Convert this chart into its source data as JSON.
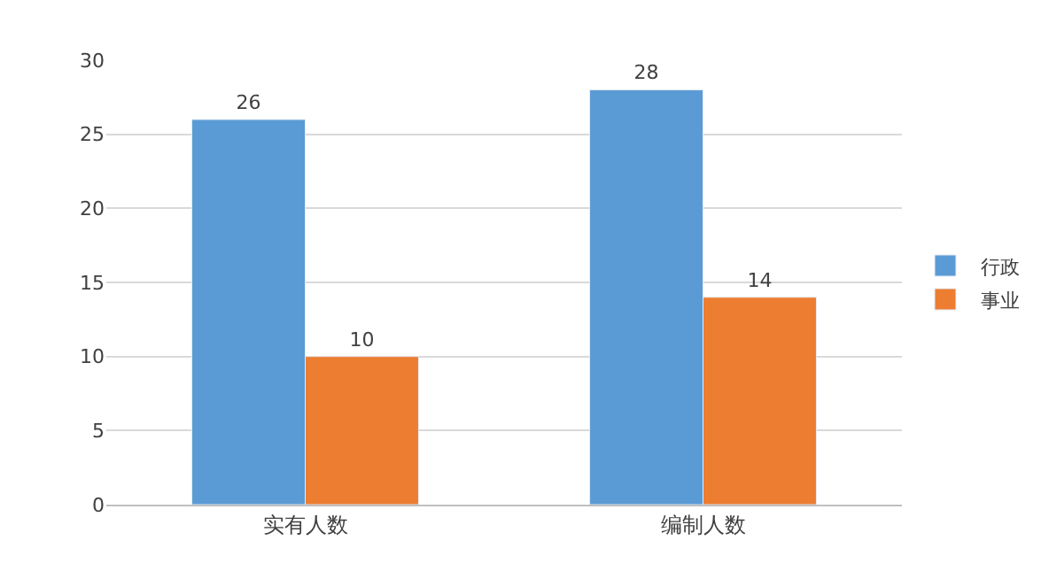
{
  "chart_data": {
    "type": "bar",
    "categories": [
      "实有人数",
      "编制人数"
    ],
    "series": [
      {
        "name": "行政",
        "color": "#5b9bd5",
        "values": [
          26,
          28
        ]
      },
      {
        "name": "事业",
        "color": "#ed7d31",
        "values": [
          10,
          14
        ]
      }
    ],
    "ylim": [
      0,
      30
    ],
    "yticks": [
      0,
      5,
      10,
      15,
      20,
      25,
      30
    ],
    "grid": "y",
    "legend": "right",
    "data_labels": true
  }
}
